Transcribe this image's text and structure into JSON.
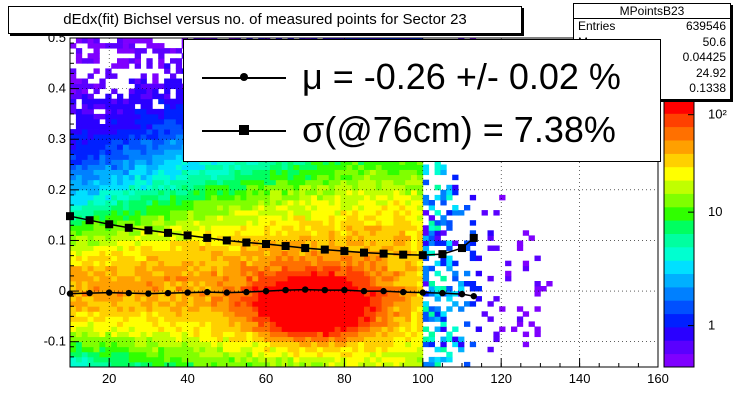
{
  "title": "dEdx(fit) Bichsel versus no. of measured points for Sector 23",
  "stats": {
    "name": "MPointsB23",
    "rows": [
      {
        "label": "Entries",
        "value": "639546"
      },
      {
        "label": "M",
        "value": "50.6"
      },
      {
        "label": "",
        "value": "0.04425"
      },
      {
        "label": "",
        "value": "24.92"
      },
      {
        "label": "",
        "value": "0.1338"
      }
    ]
  },
  "legend": {
    "entries": [
      {
        "marker": "dot",
        "text": "μ  = -0.26 +/-  0.02 %"
      },
      {
        "marker": "square",
        "text": "σ(@76cm) =  7.38%"
      }
    ]
  },
  "chart_data": {
    "type": "heatmap",
    "xlim": [
      10,
      160
    ],
    "ylim": [
      -0.15,
      0.5
    ],
    "xticks": [
      "20",
      "40",
      "60",
      "80",
      "100",
      "120",
      "140",
      "160"
    ],
    "yticks": [
      "-0.1",
      "0",
      "0.1",
      "0.2",
      "0.3",
      "0.4",
      "0.5"
    ],
    "zscale": "log",
    "zticks": [
      "1",
      "10",
      "10²"
    ],
    "grid": true,
    "density_peak": {
      "x": 72,
      "y": -0.03
    },
    "series": [
      {
        "marker": "dot",
        "x": [
          10,
          15,
          20,
          25,
          30,
          35,
          40,
          45,
          50,
          55,
          60,
          65,
          70,
          75,
          80,
          85,
          90,
          95,
          100,
          105,
          110,
          113
        ],
        "y": [
          -0.005,
          -0.004,
          -0.003,
          -0.004,
          -0.005,
          -0.004,
          -0.003,
          -0.002,
          -0.003,
          -0.002,
          0.0,
          0.002,
          0.003,
          0.002,
          0.002,
          0.0,
          0.0,
          -0.002,
          -0.003,
          -0.004,
          -0.006,
          -0.01
        ]
      },
      {
        "marker": "square",
        "x": [
          10,
          15,
          20,
          25,
          30,
          35,
          40,
          45,
          50,
          55,
          60,
          65,
          70,
          75,
          80,
          85,
          90,
          95,
          100,
          105,
          110,
          113
        ],
        "y": [
          0.148,
          0.14,
          0.132,
          0.125,
          0.12,
          0.115,
          0.11,
          0.105,
          0.1,
          0.096,
          0.093,
          0.089,
          0.085,
          0.082,
          0.079,
          0.076,
          0.074,
          0.072,
          0.071,
          0.073,
          0.085,
          0.105
        ]
      }
    ]
  }
}
